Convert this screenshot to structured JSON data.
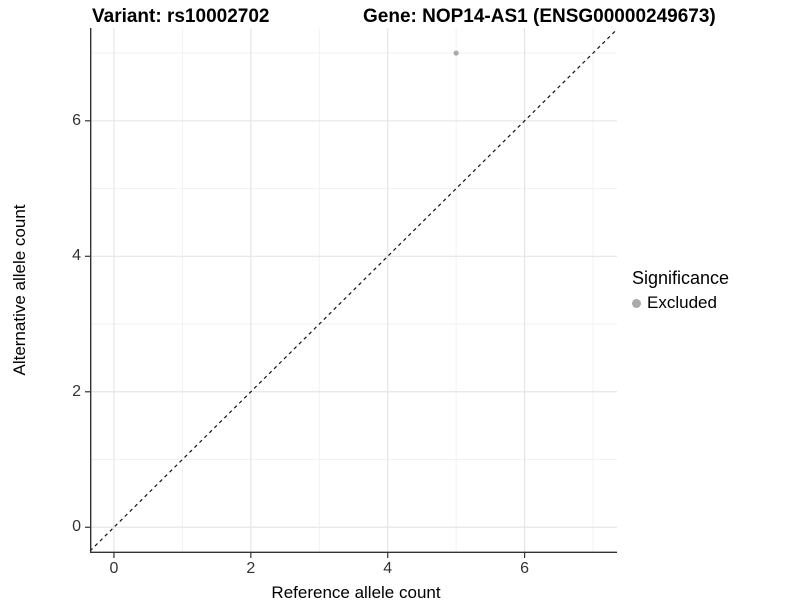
{
  "chart_data": {
    "type": "scatter",
    "title_left": "Variant: rs10002702",
    "title_right": "Gene: NOP14-AS1 (ENSG00000249673)",
    "xlabel": "Reference allele count",
    "ylabel": "Alternative allele count",
    "xlim": [
      -0.35,
      7.35
    ],
    "ylim": [
      -0.38,
      7.37
    ],
    "x_major_ticks": [
      0,
      2,
      4,
      6
    ],
    "y_major_ticks": [
      0,
      2,
      4,
      6
    ],
    "x_minor_ticks": [
      1,
      3,
      5,
      7
    ],
    "y_minor_ticks": [
      1,
      3,
      5,
      7
    ],
    "grid": true,
    "legend_position": "right",
    "series": [
      {
        "name": "Excluded",
        "marker": "circle",
        "color": "#aaaaaa",
        "points": [
          {
            "x": 5,
            "y": 7
          }
        ]
      }
    ],
    "reference_line": {
      "type": "identity",
      "slope": 1,
      "intercept": 0,
      "style": "dashed",
      "color": "#111111"
    },
    "legend": {
      "title": "Significance",
      "items": [
        {
          "label": "Excluded",
          "color": "#aaaaaa",
          "marker": "circle"
        }
      ]
    },
    "theme": {
      "grid_major_color": "#e6e6e6",
      "grid_minor_color": "#f2f2f2",
      "axis_line_color": "#333333",
      "tick_color": "#333333",
      "point_radius": 2.6,
      "legend_key_color": "#aaaaaa",
      "background": "#ffffff"
    }
  }
}
